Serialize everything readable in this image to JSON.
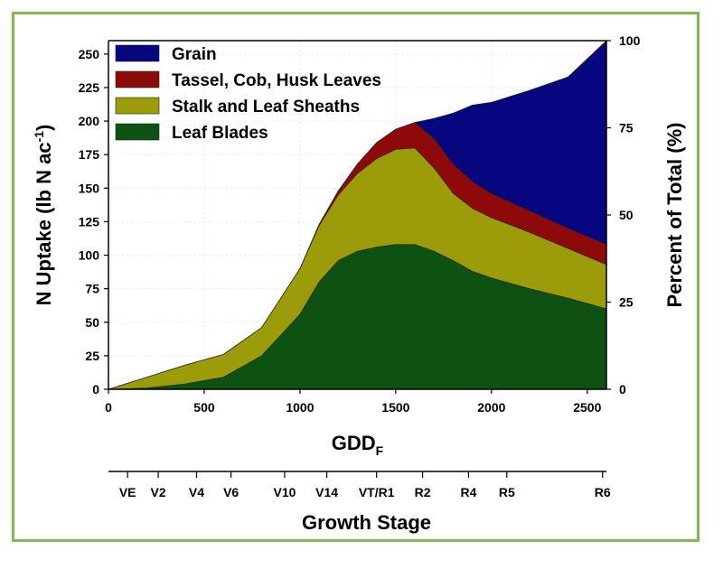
{
  "chart_data": {
    "type": "area",
    "stacked": true,
    "xlabel": "GDD",
    "xlabel_subscript": "F",
    "ylabel": "N Uptake (lb N ac",
    "ylabel_superscript": "-1",
    "ylabel_close": ")",
    "y2label": "Percent of Total (%)",
    "xlim": [
      0,
      2600
    ],
    "ylim": [
      0,
      260
    ],
    "y2lim": [
      0,
      100
    ],
    "x_ticks": [
      0,
      500,
      1000,
      1500,
      2000,
      2500
    ],
    "y_ticks": [
      0,
      25,
      50,
      75,
      100,
      125,
      150,
      175,
      200,
      225,
      250
    ],
    "y2_ticks": [
      0,
      25,
      50,
      75,
      100
    ],
    "grid": true,
    "legend_position": "top-left",
    "x": [
      0,
      200,
      400,
      600,
      800,
      1000,
      1100,
      1200,
      1300,
      1400,
      1500,
      1600,
      1700,
      1800,
      1900,
      2000,
      2200,
      2400,
      2600
    ],
    "series": [
      {
        "name": "Leaf Blades",
        "color": "#0d5212",
        "values": [
          0,
          1,
          4,
          9,
          25,
          56,
          80,
          96,
          103,
          106,
          108,
          108,
          103,
          96,
          88,
          83,
          75,
          68,
          60
        ]
      },
      {
        "name": "Stalk and Leaf Sheaths",
        "color": "#9c9b0a",
        "values": [
          0,
          8,
          14,
          17,
          21,
          34,
          42,
          49,
          58,
          66,
          71,
          72,
          62,
          50,
          47,
          45,
          42,
          37,
          33
        ]
      },
      {
        "name": "Tassel, Cob, Husk Leaves",
        "color": "#8e0a0a",
        "values": [
          0,
          0,
          0,
          0,
          0,
          0,
          1,
          3,
          7,
          12,
          15,
          19,
          22,
          22,
          20,
          18,
          16,
          15,
          15
        ]
      },
      {
        "name": "Grain",
        "color": "#06067e",
        "values": [
          0,
          0,
          0,
          0,
          0,
          0,
          0,
          0,
          0,
          0,
          0,
          0,
          15,
          38,
          57,
          68,
          90,
          113,
          152
        ]
      }
    ],
    "growth_stage": {
      "label": "Growth Stage",
      "stages": [
        {
          "label": "VE",
          "gdd": 100
        },
        {
          "label": "V2",
          "gdd": 260
        },
        {
          "label": "V4",
          "gdd": 460
        },
        {
          "label": "V6",
          "gdd": 640
        },
        {
          "label": "V10",
          "gdd": 920
        },
        {
          "label": "V14",
          "gdd": 1140
        },
        {
          "label": "VT/R1",
          "gdd": 1400
        },
        {
          "label": "R2",
          "gdd": 1640
        },
        {
          "label": "R4",
          "gdd": 1880
        },
        {
          "label": "R5",
          "gdd": 2080
        },
        {
          "label": "R6",
          "gdd": 2580
        }
      ]
    }
  },
  "legend_order": [
    "Grain",
    "Tassel, Cob, Husk Leaves",
    "Stalk and Leaf Sheaths",
    "Leaf Blades"
  ]
}
